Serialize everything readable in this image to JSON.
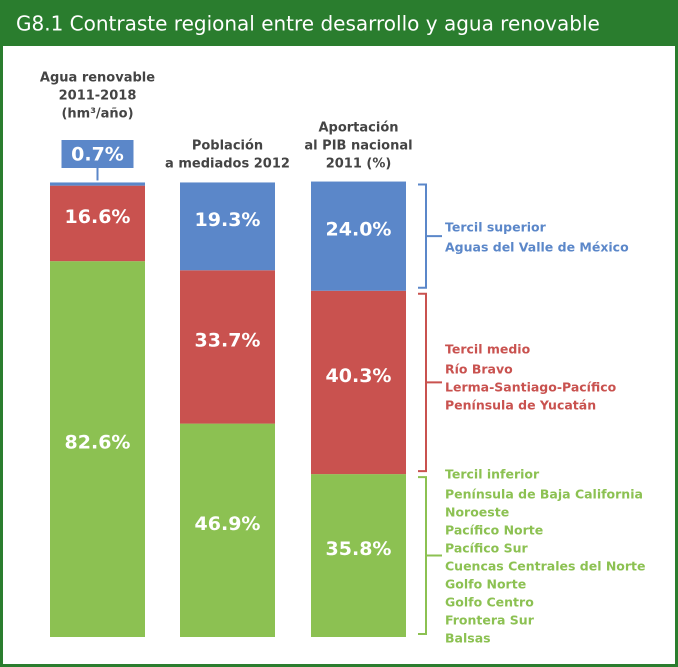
{
  "chart_data": {
    "type": "stacked_bar",
    "title": "G8.1 Contraste regional entre desarrollo y agua renovable",
    "categories": [
      [
        "Agua renovable",
        "2011-2018",
        "(hm³/año)"
      ],
      [
        "Población",
        "a mediados 2012"
      ],
      [
        "Aportación",
        "al PIB nacional",
        "2011 (%)"
      ]
    ],
    "series": [
      {
        "name": "Tercil superior",
        "color": "#5b87c9",
        "regions": [
          "Aguas del Valle de México"
        ],
        "values": [
          0.7,
          19.3,
          24.0
        ],
        "value_labels": [
          "0.7%",
          "19.3%",
          "24.0%"
        ]
      },
      {
        "name": "Tercil medio",
        "color": "#c9524f",
        "regions": [
          "Río Bravo",
          "Lerma-Santiago-Pacífico",
          "Península de Yucatán"
        ],
        "values": [
          16.6,
          33.7,
          40.3
        ],
        "value_labels": [
          "16.6%",
          "33.7%",
          "40.3%"
        ]
      },
      {
        "name": "Tercil inferior",
        "color": "#8cc152",
        "regions": [
          "Península de Baja California",
          "Noroeste",
          "Pacífico Norte",
          "Pacífico Sur",
          "Cuencas Centrales del Norte",
          "Golfo Norte",
          "Golfo Centro",
          "Frontera Sur",
          "Balsas"
        ],
        "values": [
          82.6,
          46.9,
          35.8
        ],
        "value_labels": [
          "82.6%",
          "46.9%",
          "35.8%"
        ]
      }
    ],
    "ylim": [
      0,
      100
    ]
  }
}
